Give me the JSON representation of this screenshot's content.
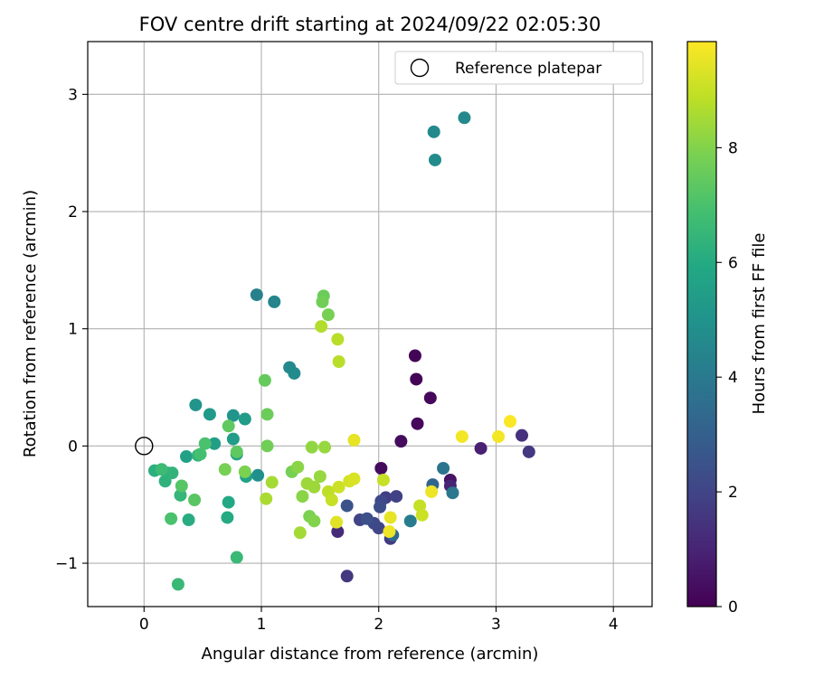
{
  "chart_data": {
    "type": "scatter",
    "title": "FOV centre drift starting at 2024/09/22 02:05:30",
    "xlabel": "Angular distance from reference (arcmin)",
    "ylabel": "Rotation from reference (arcmin)",
    "xlim": [
      -0.48,
      4.33
    ],
    "ylim": [
      -1.37,
      3.45
    ],
    "xticks": [
      0,
      1,
      2,
      3,
      4
    ],
    "yticks": [
      -1,
      0,
      1,
      2,
      3
    ],
    "grid": true,
    "legend": {
      "position": "top-right",
      "entries": [
        {
          "label": "Reference platepar",
          "marker": "hollow-circle"
        }
      ]
    },
    "reference_point": {
      "x": 0,
      "y": 0
    },
    "colorbar": {
      "label": "Hours from first FF file",
      "colormap": "viridis",
      "range": [
        0,
        9.85
      ],
      "ticks": [
        0,
        2,
        4,
        6,
        8
      ]
    },
    "points": [
      {
        "x": 2.31,
        "y": 0.77,
        "c": 0.1
      },
      {
        "x": 2.32,
        "y": 0.57,
        "c": 0.1
      },
      {
        "x": 2.44,
        "y": 0.41,
        "c": 0.2
      },
      {
        "x": 2.33,
        "y": 0.19,
        "c": 0.2
      },
      {
        "x": 2.19,
        "y": 0.04,
        "c": 0.3
      },
      {
        "x": 2.02,
        "y": -0.19,
        "c": 0.3
      },
      {
        "x": 2.61,
        "y": -0.29,
        "c": 0.5
      },
      {
        "x": 2.87,
        "y": -0.02,
        "c": 0.9
      },
      {
        "x": 2.61,
        "y": -0.34,
        "c": 1.0
      },
      {
        "x": 1.65,
        "y": -0.73,
        "c": 1.2
      },
      {
        "x": 3.22,
        "y": 0.09,
        "c": 1.4
      },
      {
        "x": 3.28,
        "y": -0.05,
        "c": 1.6
      },
      {
        "x": 1.73,
        "y": -1.11,
        "c": 1.6
      },
      {
        "x": 2.1,
        "y": -0.79,
        "c": 1.7
      },
      {
        "x": 2.06,
        "y": -0.44,
        "c": 1.8
      },
      {
        "x": 2.15,
        "y": -0.43,
        "c": 1.9
      },
      {
        "x": 1.84,
        "y": -0.63,
        "c": 2.0
      },
      {
        "x": 2.0,
        "y": -0.7,
        "c": 2.0
      },
      {
        "x": 2.02,
        "y": -0.47,
        "c": 2.1
      },
      {
        "x": 1.96,
        "y": -0.66,
        "c": 2.2
      },
      {
        "x": 2.01,
        "y": -0.52,
        "c": 2.3
      },
      {
        "x": 1.9,
        "y": -0.62,
        "c": 2.4
      },
      {
        "x": 1.73,
        "y": -0.51,
        "c": 2.5
      },
      {
        "x": 2.46,
        "y": -0.33,
        "c": 3.2
      },
      {
        "x": 2.12,
        "y": -0.76,
        "c": 3.4
      },
      {
        "x": 2.55,
        "y": -0.19,
        "c": 3.8
      },
      {
        "x": 2.63,
        "y": -0.4,
        "c": 3.9
      },
      {
        "x": 2.27,
        "y": -0.64,
        "c": 4.1
      },
      {
        "x": 2.73,
        "y": 2.8,
        "c": 4.6
      },
      {
        "x": 2.47,
        "y": 2.68,
        "c": 4.6
      },
      {
        "x": 2.48,
        "y": 2.44,
        "c": 4.7
      },
      {
        "x": 0.96,
        "y": 1.29,
        "c": 4.3
      },
      {
        "x": 1.11,
        "y": 1.23,
        "c": 4.4
      },
      {
        "x": 1.24,
        "y": 0.67,
        "c": 4.6
      },
      {
        "x": 1.28,
        "y": 0.62,
        "c": 4.7
      },
      {
        "x": 0.97,
        "y": -0.25,
        "c": 4.9
      },
      {
        "x": 0.44,
        "y": 0.35,
        "c": 5.1
      },
      {
        "x": 0.76,
        "y": 0.26,
        "c": 5.1
      },
      {
        "x": 0.56,
        "y": 0.27,
        "c": 5.3
      },
      {
        "x": 0.86,
        "y": 0.23,
        "c": 5.4
      },
      {
        "x": 0.76,
        "y": 0.06,
        "c": 5.4
      },
      {
        "x": 0.6,
        "y": 0.02,
        "c": 5.5
      },
      {
        "x": 0.36,
        "y": -0.09,
        "c": 5.6
      },
      {
        "x": 0.87,
        "y": -0.26,
        "c": 5.6
      },
      {
        "x": 0.79,
        "y": -0.07,
        "c": 5.7
      },
      {
        "x": 0.72,
        "y": -0.48,
        "c": 5.9
      },
      {
        "x": 0.71,
        "y": -0.61,
        "c": 6.0
      },
      {
        "x": 0.38,
        "y": -0.63,
        "c": 6.1
      },
      {
        "x": 0.09,
        "y": -0.21,
        "c": 6.2
      },
      {
        "x": 0.2,
        "y": -0.23,
        "c": 6.2
      },
      {
        "x": 0.18,
        "y": -0.3,
        "c": 6.3
      },
      {
        "x": 0.24,
        "y": -0.23,
        "c": 6.4
      },
      {
        "x": 0.46,
        "y": -0.08,
        "c": 6.4
      },
      {
        "x": 0.31,
        "y": -0.42,
        "c": 6.5
      },
      {
        "x": 0.29,
        "y": -1.18,
        "c": 6.6
      },
      {
        "x": 0.79,
        "y": -0.95,
        "c": 6.6
      },
      {
        "x": 0.15,
        "y": -0.2,
        "c": 6.7
      },
      {
        "x": 0.48,
        "y": -0.07,
        "c": 6.9
      },
      {
        "x": 0.52,
        "y": 0.02,
        "c": 7.0
      },
      {
        "x": 0.23,
        "y": -0.62,
        "c": 7.0
      },
      {
        "x": 0.32,
        "y": -0.34,
        "c": 7.2
      },
      {
        "x": 0.43,
        "y": -0.46,
        "c": 7.3
      },
      {
        "x": 0.79,
        "y": -0.05,
        "c": 7.4
      },
      {
        "x": 0.72,
        "y": 0.17,
        "c": 7.4
      },
      {
        "x": 1.03,
        "y": 0.56,
        "c": 7.5
      },
      {
        "x": 1.05,
        "y": 0.27,
        "c": 7.6
      },
      {
        "x": 1.05,
        "y": 0.0,
        "c": 7.7
      },
      {
        "x": 0.69,
        "y": -0.2,
        "c": 7.8
      },
      {
        "x": 0.86,
        "y": -0.22,
        "c": 7.9
      },
      {
        "x": 1.53,
        "y": 1.28,
        "c": 7.6
      },
      {
        "x": 1.52,
        "y": 1.23,
        "c": 7.7
      },
      {
        "x": 1.57,
        "y": 1.12,
        "c": 7.8
      },
      {
        "x": 1.26,
        "y": -0.22,
        "c": 7.8
      },
      {
        "x": 1.41,
        "y": -0.6,
        "c": 7.9
      },
      {
        "x": 1.45,
        "y": -0.64,
        "c": 8.0
      },
      {
        "x": 1.31,
        "y": -0.18,
        "c": 8.1
      },
      {
        "x": 1.35,
        "y": -0.43,
        "c": 8.1
      },
      {
        "x": 1.43,
        "y": -0.01,
        "c": 8.2
      },
      {
        "x": 1.54,
        "y": -0.01,
        "c": 8.3
      },
      {
        "x": 1.5,
        "y": -0.26,
        "c": 8.3
      },
      {
        "x": 1.39,
        "y": -0.32,
        "c": 8.4
      },
      {
        "x": 1.45,
        "y": -0.35,
        "c": 8.4
      },
      {
        "x": 1.33,
        "y": -0.74,
        "c": 8.5
      },
      {
        "x": 1.09,
        "y": -0.31,
        "c": 8.5
      },
      {
        "x": 1.04,
        "y": -0.45,
        "c": 8.6
      },
      {
        "x": 1.51,
        "y": 1.02,
        "c": 8.7
      },
      {
        "x": 1.65,
        "y": 0.91,
        "c": 8.8
      },
      {
        "x": 1.66,
        "y": 0.72,
        "c": 8.8
      },
      {
        "x": 1.57,
        "y": -0.39,
        "c": 8.9
      },
      {
        "x": 1.6,
        "y": -0.46,
        "c": 9.0
      },
      {
        "x": 1.66,
        "y": -0.35,
        "c": 9.1
      },
      {
        "x": 1.75,
        "y": -0.3,
        "c": 9.2
      },
      {
        "x": 1.79,
        "y": -0.28,
        "c": 9.3
      },
      {
        "x": 2.04,
        "y": -0.29,
        "c": 9.0
      },
      {
        "x": 2.35,
        "y": -0.51,
        "c": 9.0
      },
      {
        "x": 2.37,
        "y": -0.59,
        "c": 9.1
      },
      {
        "x": 1.64,
        "y": -0.65,
        "c": 9.4
      },
      {
        "x": 1.79,
        "y": 0.05,
        "c": 9.5
      },
      {
        "x": 2.1,
        "y": -0.61,
        "c": 9.5
      },
      {
        "x": 2.09,
        "y": -0.73,
        "c": 9.6
      },
      {
        "x": 2.45,
        "y": -0.39,
        "c": 9.6
      },
      {
        "x": 2.71,
        "y": 0.08,
        "c": 9.7
      },
      {
        "x": 3.02,
        "y": 0.08,
        "c": 9.7
      },
      {
        "x": 3.12,
        "y": 0.21,
        "c": 9.8
      }
    ]
  }
}
